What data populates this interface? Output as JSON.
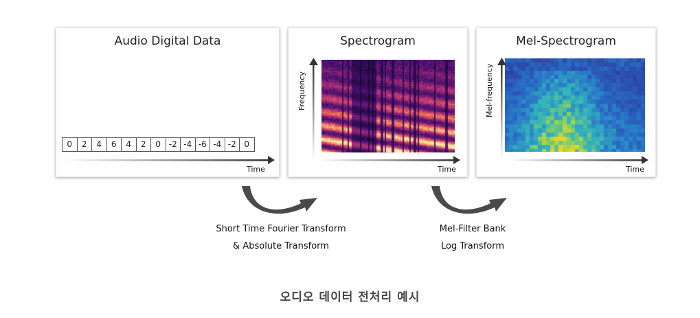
{
  "panels": {
    "audio": {
      "title": "Audio Digital Data",
      "samples": [
        "0",
        "2",
        "4",
        "6",
        "4",
        "2",
        "0",
        "-2",
        "-4",
        "-6",
        "-4",
        "-2",
        "0"
      ],
      "time_label": "Time"
    },
    "spectrogram": {
      "title": "Spectrogram",
      "y_label": "Frequency",
      "time_label": "Time"
    },
    "mel": {
      "title": "Mel-Spectrogram",
      "y_label": "Mel-frequency",
      "time_label": "Time"
    }
  },
  "transforms": {
    "stft": {
      "line1": "Short Time Fourier Transform",
      "line2": "& Absolute Transform"
    },
    "mel": {
      "line1": "Mel-Filter Bank",
      "line2": "Log Transform"
    }
  },
  "footer": {
    "title": "오디오 데이터 전처리 예시"
  },
  "colors": {
    "wave_start": "#3aa6d8",
    "wave_end": "#c03cc4",
    "arrow": "#4a4a4a"
  }
}
